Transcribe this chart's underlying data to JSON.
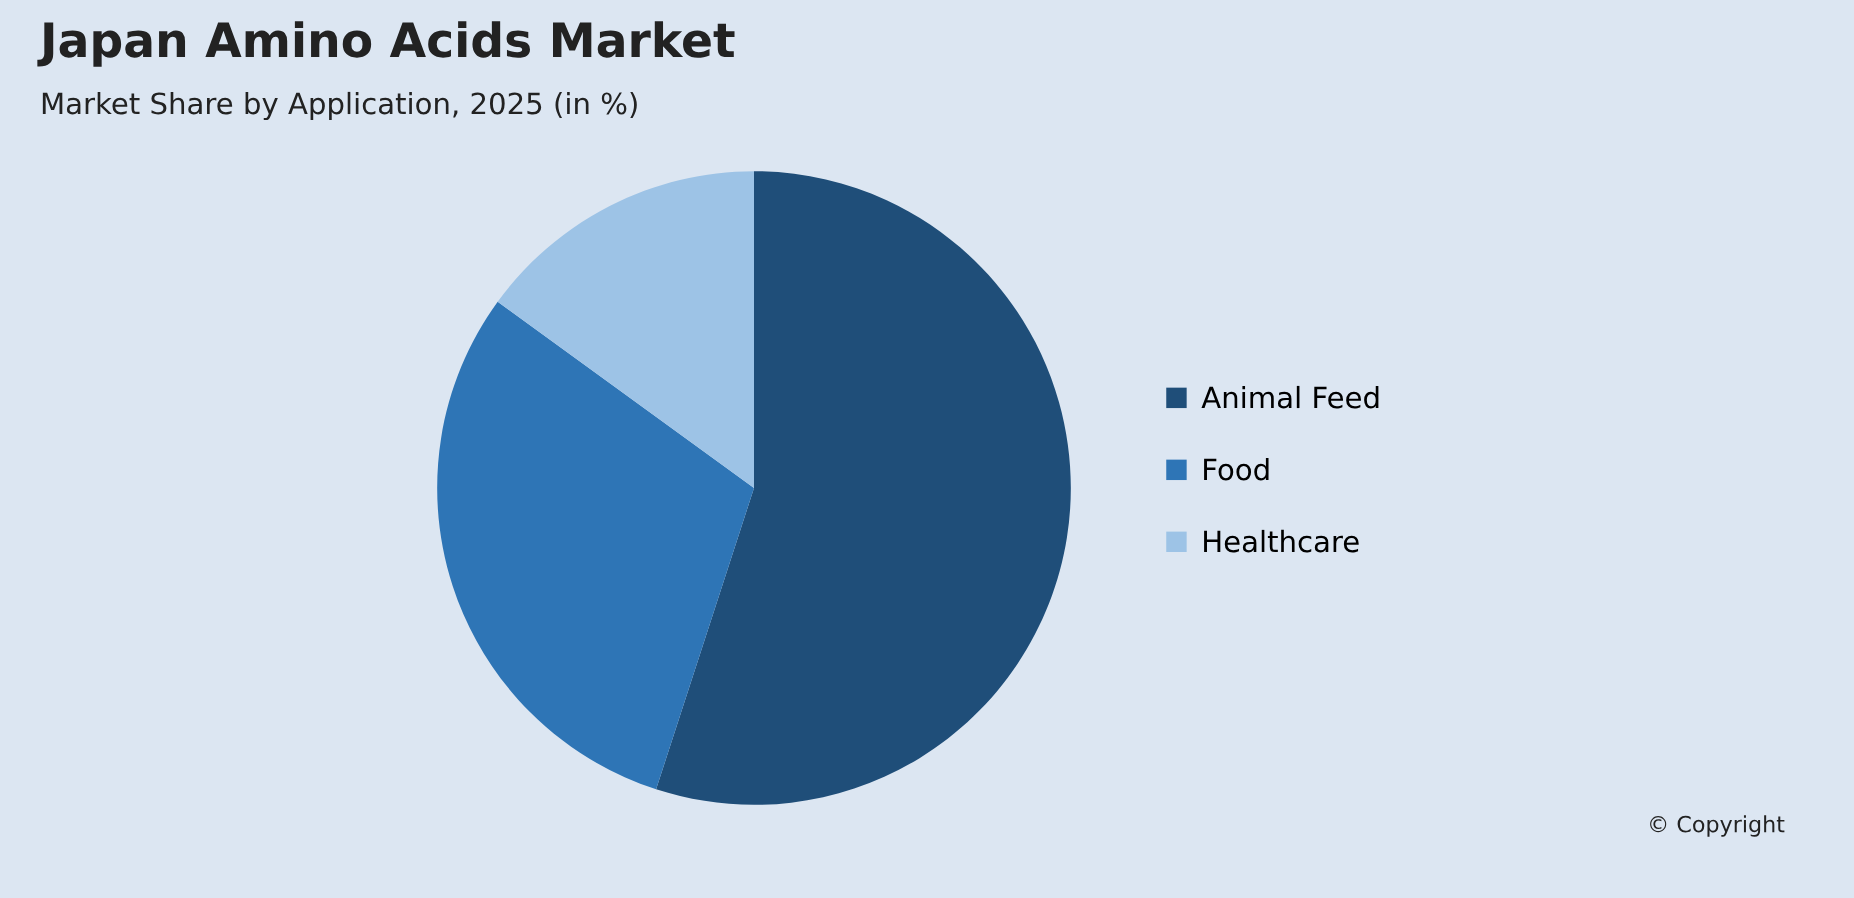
{
  "chart_data": {
    "type": "pie",
    "title": "Japan Amino Acids Market",
    "subtitle": "Market Share by Application, 2025 (in %)",
    "categories": [
      "Animal Feed",
      "Food",
      "Healthcare"
    ],
    "values": [
      55,
      30,
      15
    ],
    "colors": [
      "#1f4e79",
      "#2e75b6",
      "#9dc3e6"
    ],
    "legend": "right",
    "annotations": [
      "© Copyright"
    ]
  }
}
